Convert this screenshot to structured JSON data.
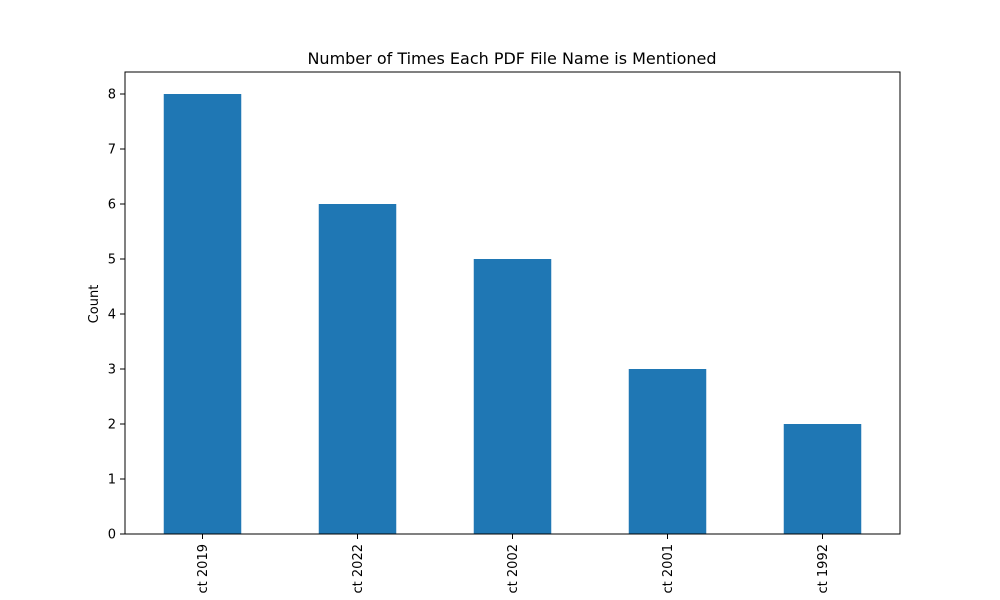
{
  "chart_data": {
    "type": "bar",
    "title": "Number of Times Each PDF File Name is Mentioned",
    "xlabel": "",
    "ylabel": "Count",
    "categories": [
      "ct 2019",
      "ct 2022",
      "ct 2002",
      "ct 2001",
      "ct 1992"
    ],
    "values": [
      8,
      6,
      5,
      3,
      2
    ],
    "ylim": [
      0,
      8.4
    ],
    "yticks": [
      0,
      1,
      2,
      3,
      4,
      5,
      6,
      7,
      8
    ],
    "bar_color": "#1f77b4",
    "grid": false,
    "legend": "none"
  }
}
